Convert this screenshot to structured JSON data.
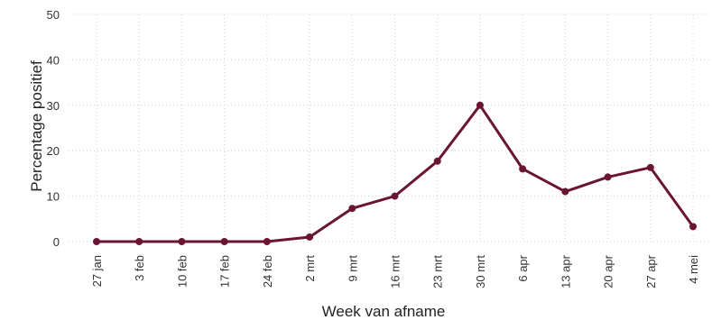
{
  "chart_data": {
    "type": "line",
    "title": "",
    "xlabel": "Week van afname",
    "ylabel": "Percentage positief",
    "categories": [
      "27 jan",
      "3 feb",
      "10 feb",
      "17 feb",
      "24 feb",
      "2 mrt",
      "9 mrt",
      "16 mrt",
      "23 mrt",
      "30 mrt",
      "6 apr",
      "13 apr",
      "20 apr",
      "27 apr",
      "4 mei"
    ],
    "series": [
      {
        "values": [
          0,
          0,
          0,
          0,
          0,
          1,
          7.3,
          10,
          17.7,
          30,
          16,
          11,
          14.2,
          16.3,
          3.3
        ]
      }
    ],
    "ylim": [
      0,
      50
    ],
    "yticks": [
      0,
      10,
      20,
      30,
      40,
      50
    ],
    "grid": true,
    "legend": "none",
    "colors": {
      "line": "#6b1535",
      "marker": "#6b1535",
      "grid": "#d4d4d4",
      "text": "#333333"
    }
  }
}
